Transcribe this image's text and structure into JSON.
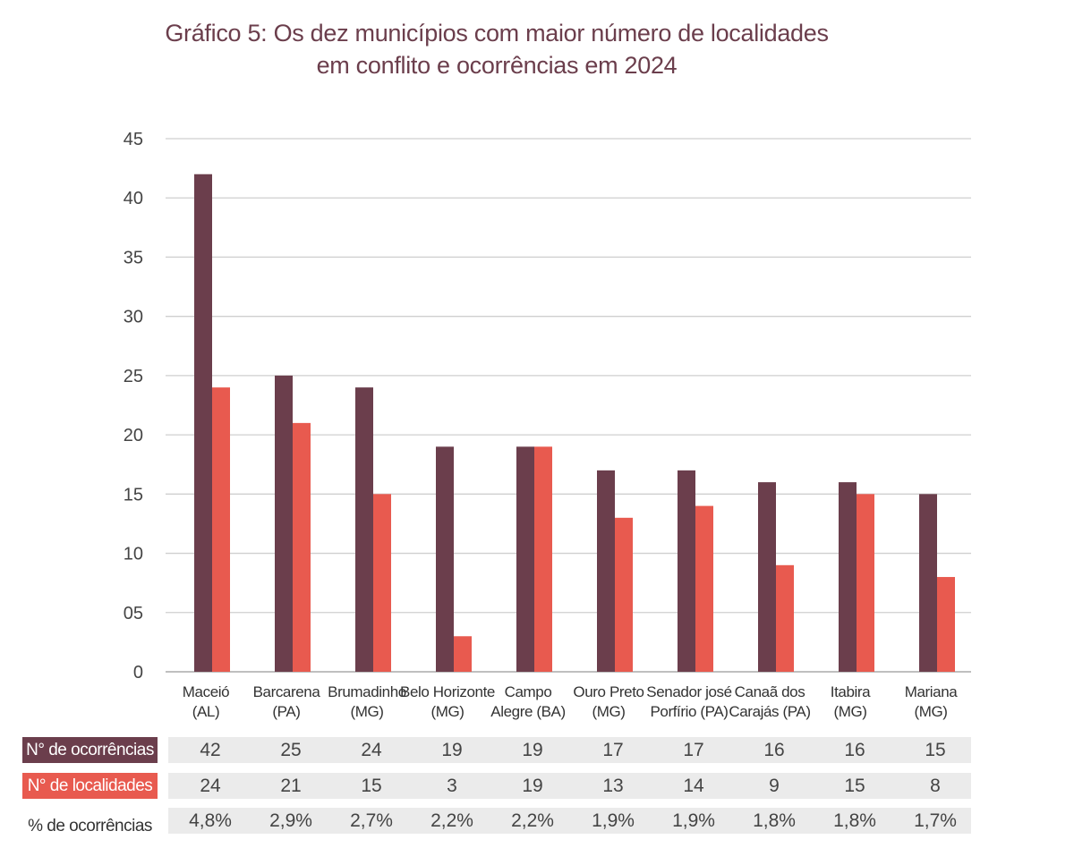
{
  "chart_data": {
    "type": "bar",
    "title_line1": "Gráfico 5: Os dez municípios com maior número de localidades",
    "title_line2": "em conflito e ocorrências em 2024",
    "categories": [
      [
        "Maceió",
        "(AL)"
      ],
      [
        "Barcarena",
        "(PA)"
      ],
      [
        "Brumadinho",
        "(MG)"
      ],
      [
        "Belo Horizonte",
        "(MG)"
      ],
      [
        "Campo",
        "Alegre (BA)"
      ],
      [
        "Ouro Preto",
        "(MG)"
      ],
      [
        "Senador josé",
        "Porfírio (PA)"
      ],
      [
        "Canaã dos",
        "Carajás (PA)"
      ],
      [
        "Itabira",
        "(MG)"
      ],
      [
        "Mariana",
        "(MG)"
      ]
    ],
    "series": [
      {
        "name": "N° de ocorrências",
        "color": "#6b3e4c",
        "values": [
          42,
          25,
          24,
          19,
          19,
          17,
          17,
          16,
          16,
          15
        ]
      },
      {
        "name": "N° de localidades",
        "color": "#e85a4f",
        "values": [
          24,
          21,
          15,
          3,
          19,
          13,
          14,
          9,
          15,
          8
        ]
      }
    ],
    "percent_row": {
      "name": "% de ocorrências",
      "values": [
        "4,8%",
        "2,9%",
        "2,7%",
        "2,2%",
        "2,2%",
        "1,9%",
        "1,9%",
        "1,8%",
        "1,8%",
        "1,7%"
      ]
    },
    "yticks": [
      "0",
      "05",
      "10",
      "15",
      "20",
      "25",
      "30",
      "35",
      "40",
      "45"
    ],
    "ylim": [
      0,
      45
    ],
    "grid": true,
    "xlabel": "",
    "ylabel": ""
  }
}
